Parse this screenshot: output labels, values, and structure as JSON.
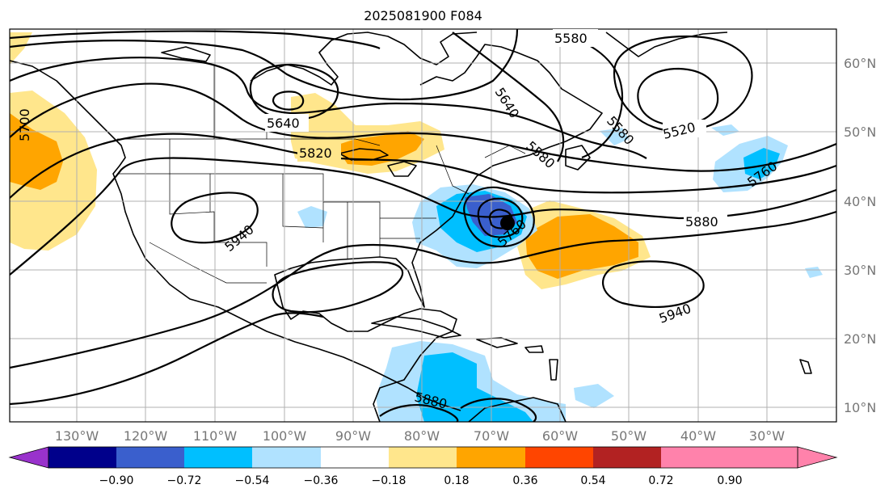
{
  "title": "2025081900 F084",
  "longitude_labels": [
    "130°W",
    "120°W",
    "110°W",
    "100°W",
    "90°W",
    "80°W",
    "70°W",
    "60°W",
    "50°W",
    "40°W",
    "30°W"
  ],
  "latitude_labels": [
    "60°N",
    "50°N",
    "40°N",
    "30°N",
    "20°N",
    "10°N"
  ],
  "contour_labels": [
    "5580",
    "5640",
    "5640",
    "5520",
    "5580",
    "5580",
    "5820",
    "5700",
    "5760",
    "5940",
    "5880",
    "5760",
    "5940",
    "5880"
  ],
  "colorbar": {
    "ticks": [
      "−0.90",
      "−0.72",
      "−0.54",
      "−0.36",
      "−0.18",
      "0.18",
      "0.36",
      "0.54",
      "0.72",
      "0.90"
    ],
    "colors": [
      "#9932cc",
      "#00008b",
      "#3a5fcd",
      "#00bfff",
      "#b0e2ff",
      "#ffffff",
      "#ffe68c",
      "#ffa500",
      "#ff4500",
      "#b22222",
      "#ff82ab"
    ]
  },
  "marker": "storm-center"
}
